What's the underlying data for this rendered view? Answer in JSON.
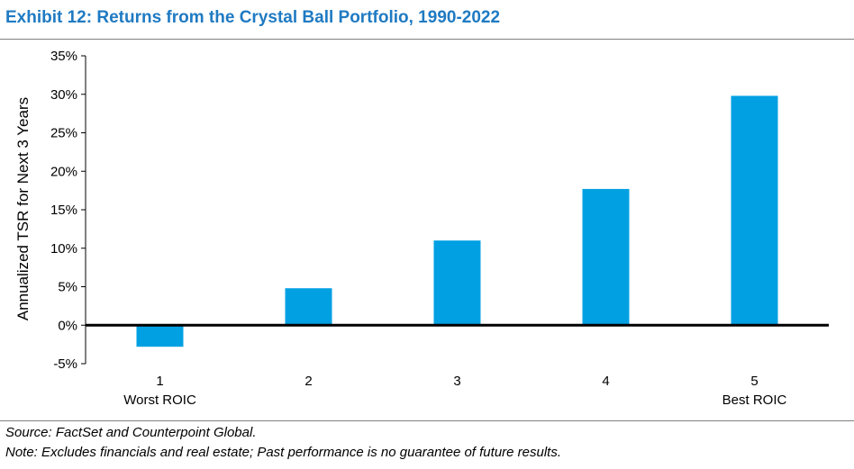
{
  "title": "Exhibit 12: Returns from the Crystal Ball Portfolio, 1990-2022",
  "footnotes": {
    "source": "Source: FactSet and Counterpoint Global.",
    "note": "Note: Excludes financials and real estate; Past performance is no guarantee of future results."
  },
  "colors": {
    "title": "#1f7ac2",
    "bar": "#00a0e3",
    "axis": "#000000",
    "rule": "#7f7f7f"
  },
  "chart_data": {
    "type": "bar",
    "categories": [
      "1",
      "2",
      "3",
      "4",
      "5"
    ],
    "category_sublabels": [
      "Worst ROIC",
      "",
      "",
      "",
      "Best ROIC"
    ],
    "values": [
      -2.8,
      4.8,
      11.0,
      17.7,
      29.8
    ],
    "ylabel": "Annualized TSR for Next 3 Years",
    "xlabel": "",
    "ylim": [
      -5,
      35
    ],
    "yticks": [
      -5,
      0,
      5,
      10,
      15,
      20,
      25,
      30,
      35
    ],
    "ytick_labels": [
      "-5%",
      "0%",
      "5%",
      "10%",
      "15%",
      "20%",
      "25%",
      "30%",
      "35%"
    ],
    "grid": false,
    "legend": "none"
  }
}
